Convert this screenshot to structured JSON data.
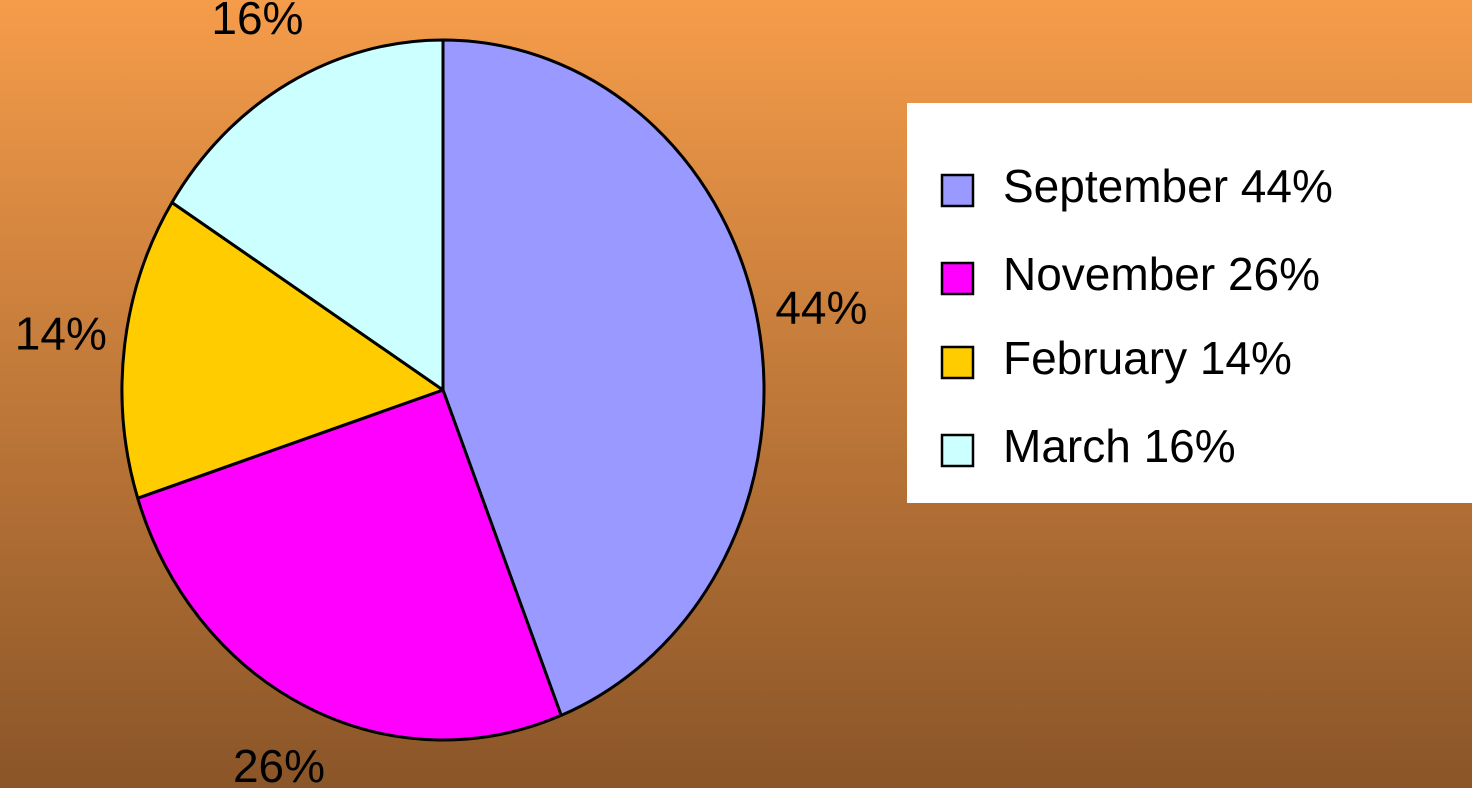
{
  "chart_data": {
    "type": "pie",
    "categories": [
      "September 44%",
      "November 26%",
      "February 14%",
      "March 16%"
    ],
    "values": [
      44,
      26,
      14,
      16
    ],
    "value_labels": [
      "44%",
      "26%",
      "14%",
      "16%"
    ],
    "colors": [
      "#9999ff",
      "#ff00ff",
      "#ffcc00",
      "#ccffff"
    ],
    "legend": "right"
  }
}
